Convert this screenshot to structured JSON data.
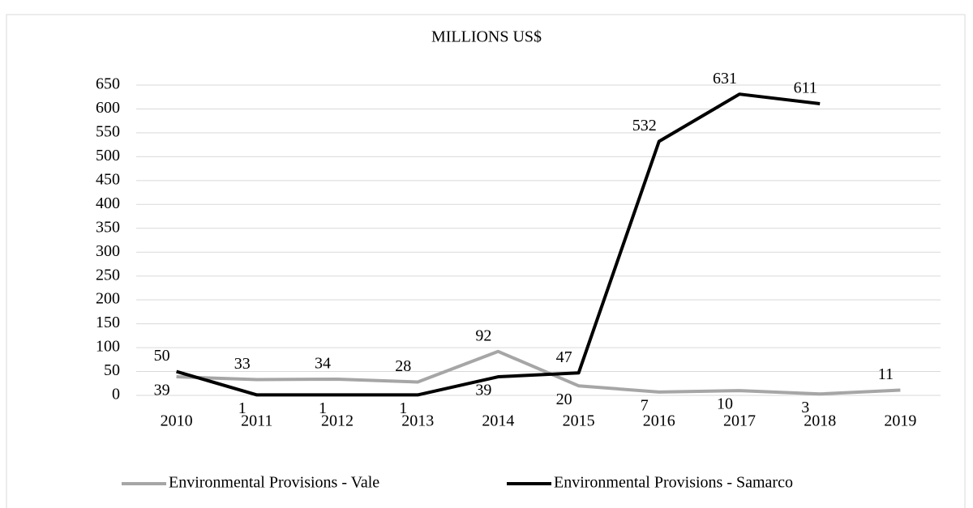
{
  "chart_data": {
    "type": "line",
    "title": "MILLIONS US$",
    "categories": [
      "2010",
      "2011",
      "2012",
      "2013",
      "2014",
      "2015",
      "2016",
      "2017",
      "2018",
      "2019"
    ],
    "series": [
      {
        "name": "Environmental Provisions - Vale",
        "color": "#a6a6a6",
        "values": [
          39,
          33,
          34,
          28,
          92,
          20,
          7,
          10,
          3,
          11
        ]
      },
      {
        "name": "Environmental Provisions - Samarco",
        "color": "#000000",
        "values": [
          50,
          1,
          1,
          1,
          39,
          47,
          532,
          631,
          611,
          null
        ]
      }
    ],
    "ylim": [
      0,
      650
    ],
    "yticks": [
      0,
      50,
      100,
      150,
      200,
      250,
      300,
      350,
      400,
      450,
      500,
      550,
      600,
      650
    ],
    "grid": true,
    "legend": "bottom"
  }
}
